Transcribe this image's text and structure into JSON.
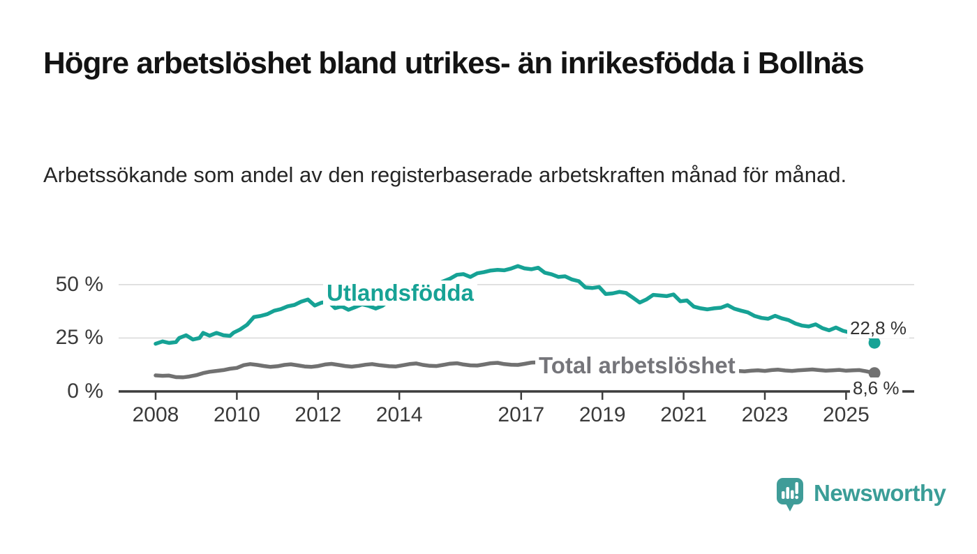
{
  "title": "Högre arbetslöshet bland utrikes- än inrikesfödda i Bollnäs",
  "subtitle": "Arbetssökande som andel av den registerbaserade arbetskraften månad för månad.",
  "brand": {
    "name": "Newsworthy",
    "logo_icon": "speech-bubble-bar-chart-icon",
    "color": "#3a9d97"
  },
  "colors": {
    "foreign_born_line": "#16a295",
    "total_line": "#717171",
    "axis": "#3d3d3d",
    "grid": "#dadada",
    "text": "#3a3a3a"
  },
  "chart_data": {
    "type": "line",
    "unit": "percent of registered labour force",
    "grid": "horizontal-only",
    "xlim": [
      2007.75,
      2025.95
    ],
    "ylim": [
      0,
      60
    ],
    "x_ticks": [
      2008,
      2010,
      2012,
      2014,
      2017,
      2019,
      2021,
      2023,
      2025
    ],
    "y_ticks": [
      {
        "label": "0 %",
        "value": 0
      },
      {
        "label": "25 %",
        "value": 25
      },
      {
        "label": "50 %",
        "value": 50
      }
    ],
    "series": [
      {
        "name": "Utlandsfödda",
        "color": "#16a295",
        "end_label": "22,8 %",
        "end_value": 22.8,
        "points": [
          [
            2008.0,
            22.3
          ],
          [
            2008.17,
            23.4
          ],
          [
            2008.33,
            22.7
          ],
          [
            2008.5,
            23.1
          ],
          [
            2008.58,
            25.0
          ],
          [
            2008.75,
            26.3
          ],
          [
            2008.92,
            24.3
          ],
          [
            2009.08,
            25.0
          ],
          [
            2009.17,
            27.4
          ],
          [
            2009.33,
            26.1
          ],
          [
            2009.5,
            27.4
          ],
          [
            2009.67,
            26.3
          ],
          [
            2009.83,
            26.0
          ],
          [
            2009.92,
            27.5
          ],
          [
            2010.08,
            29.0
          ],
          [
            2010.25,
            31.2
          ],
          [
            2010.42,
            34.8
          ],
          [
            2010.58,
            35.3
          ],
          [
            2010.75,
            36.2
          ],
          [
            2010.92,
            37.8
          ],
          [
            2011.08,
            38.5
          ],
          [
            2011.25,
            39.8
          ],
          [
            2011.42,
            40.5
          ],
          [
            2011.58,
            42.0
          ],
          [
            2011.75,
            43.0
          ],
          [
            2011.92,
            40.2
          ],
          [
            2012.08,
            41.5
          ],
          [
            2012.25,
            42.0
          ],
          [
            2012.42,
            39.0
          ],
          [
            2012.58,
            39.8
          ],
          [
            2012.75,
            38.2
          ],
          [
            2012.92,
            39.5
          ],
          [
            2013.08,
            40.8
          ],
          [
            2013.25,
            40.0
          ],
          [
            2013.42,
            38.8
          ],
          [
            2013.58,
            40.0
          ],
          [
            2013.75,
            42.5
          ],
          [
            2013.92,
            44.8
          ],
          [
            2014.08,
            46.3
          ],
          [
            2014.25,
            48.3
          ],
          [
            2014.42,
            48.8
          ],
          [
            2014.58,
            47.6
          ],
          [
            2014.75,
            48.8
          ],
          [
            2014.92,
            50.2
          ],
          [
            2015.08,
            51.5
          ],
          [
            2015.25,
            52.8
          ],
          [
            2015.42,
            54.6
          ],
          [
            2015.58,
            54.9
          ],
          [
            2015.75,
            53.6
          ],
          [
            2015.92,
            55.3
          ],
          [
            2016.08,
            55.8
          ],
          [
            2016.25,
            56.6
          ],
          [
            2016.42,
            56.9
          ],
          [
            2016.58,
            56.7
          ],
          [
            2016.75,
            57.5
          ],
          [
            2016.92,
            58.7
          ],
          [
            2017.08,
            57.6
          ],
          [
            2017.25,
            57.2
          ],
          [
            2017.42,
            57.9
          ],
          [
            2017.58,
            55.6
          ],
          [
            2017.75,
            54.8
          ],
          [
            2017.92,
            53.6
          ],
          [
            2018.08,
            53.9
          ],
          [
            2018.25,
            52.4
          ],
          [
            2018.42,
            51.6
          ],
          [
            2018.58,
            48.7
          ],
          [
            2018.75,
            48.4
          ],
          [
            2018.92,
            48.9
          ],
          [
            2019.08,
            45.6
          ],
          [
            2019.25,
            45.9
          ],
          [
            2019.42,
            46.6
          ],
          [
            2019.58,
            46.1
          ],
          [
            2019.75,
            43.9
          ],
          [
            2019.92,
            41.6
          ],
          [
            2020.08,
            43.0
          ],
          [
            2020.25,
            45.2
          ],
          [
            2020.42,
            44.9
          ],
          [
            2020.58,
            44.6
          ],
          [
            2020.75,
            45.4
          ],
          [
            2020.92,
            42.2
          ],
          [
            2021.08,
            42.6
          ],
          [
            2021.25,
            39.7
          ],
          [
            2021.42,
            38.9
          ],
          [
            2021.58,
            38.4
          ],
          [
            2021.75,
            38.9
          ],
          [
            2021.92,
            39.2
          ],
          [
            2022.08,
            40.4
          ],
          [
            2022.25,
            38.7
          ],
          [
            2022.42,
            37.8
          ],
          [
            2022.58,
            37.0
          ],
          [
            2022.75,
            35.3
          ],
          [
            2022.92,
            34.4
          ],
          [
            2023.08,
            34.0
          ],
          [
            2023.25,
            35.4
          ],
          [
            2023.42,
            34.2
          ],
          [
            2023.58,
            33.4
          ],
          [
            2023.75,
            31.8
          ],
          [
            2023.92,
            30.8
          ],
          [
            2024.08,
            30.4
          ],
          [
            2024.25,
            31.4
          ],
          [
            2024.42,
            29.6
          ],
          [
            2024.58,
            28.6
          ],
          [
            2024.75,
            29.9
          ],
          [
            2024.92,
            28.4
          ],
          [
            2025.08,
            27.6
          ],
          [
            2025.25,
            28.0
          ],
          [
            2025.4,
            29.0
          ],
          [
            2025.5,
            27.2
          ],
          [
            2025.58,
            25.5
          ],
          [
            2025.7,
            22.8
          ]
        ]
      },
      {
        "name": "Total arbetslöshet",
        "color": "#717171",
        "end_label": "8,6 %",
        "end_value": 8.6,
        "points": [
          [
            2008.0,
            7.5
          ],
          [
            2008.17,
            7.3
          ],
          [
            2008.33,
            7.4
          ],
          [
            2008.5,
            6.7
          ],
          [
            2008.67,
            6.6
          ],
          [
            2008.83,
            7.0
          ],
          [
            2009.0,
            7.6
          ],
          [
            2009.17,
            8.6
          ],
          [
            2009.33,
            9.2
          ],
          [
            2009.5,
            9.6
          ],
          [
            2009.67,
            10.0
          ],
          [
            2009.83,
            10.6
          ],
          [
            2010.0,
            11.0
          ],
          [
            2010.17,
            12.3
          ],
          [
            2010.33,
            12.8
          ],
          [
            2010.5,
            12.4
          ],
          [
            2010.67,
            11.9
          ],
          [
            2010.83,
            11.5
          ],
          [
            2011.0,
            11.8
          ],
          [
            2011.17,
            12.4
          ],
          [
            2011.33,
            12.7
          ],
          [
            2011.5,
            12.2
          ],
          [
            2011.67,
            11.7
          ],
          [
            2011.83,
            11.5
          ],
          [
            2012.0,
            11.9
          ],
          [
            2012.17,
            12.6
          ],
          [
            2012.33,
            12.9
          ],
          [
            2012.5,
            12.4
          ],
          [
            2012.67,
            11.9
          ],
          [
            2012.83,
            11.6
          ],
          [
            2013.0,
            12.0
          ],
          [
            2013.17,
            12.5
          ],
          [
            2013.33,
            12.8
          ],
          [
            2013.5,
            12.3
          ],
          [
            2013.75,
            11.8
          ],
          [
            2013.92,
            11.7
          ],
          [
            2014.08,
            12.2
          ],
          [
            2014.25,
            12.8
          ],
          [
            2014.42,
            13.1
          ],
          [
            2014.58,
            12.4
          ],
          [
            2014.75,
            12.0
          ],
          [
            2014.92,
            11.9
          ],
          [
            2015.08,
            12.4
          ],
          [
            2015.25,
            13.0
          ],
          [
            2015.42,
            13.2
          ],
          [
            2015.58,
            12.6
          ],
          [
            2015.75,
            12.2
          ],
          [
            2015.92,
            12.1
          ],
          [
            2016.08,
            12.6
          ],
          [
            2016.25,
            13.2
          ],
          [
            2016.42,
            13.4
          ],
          [
            2016.58,
            12.8
          ],
          [
            2016.75,
            12.5
          ],
          [
            2016.92,
            12.4
          ],
          [
            2017.08,
            12.9
          ],
          [
            2017.25,
            13.5
          ],
          [
            2017.42,
            13.6
          ],
          [
            2017.58,
            13.0
          ],
          [
            2017.75,
            12.6
          ],
          [
            2018.0,
            12.8
          ],
          [
            2018.33,
            12.4
          ],
          [
            2018.67,
            11.9
          ],
          [
            2019.0,
            11.6
          ],
          [
            2019.33,
            11.2
          ],
          [
            2019.67,
            10.9
          ],
          [
            2020.0,
            11.3
          ],
          [
            2020.33,
            11.6
          ],
          [
            2020.67,
            11.2
          ],
          [
            2021.0,
            10.8
          ],
          [
            2021.33,
            10.4
          ],
          [
            2021.67,
            10.1
          ],
          [
            2022.0,
            9.9
          ],
          [
            2022.17,
            9.8
          ],
          [
            2022.33,
            9.6
          ],
          [
            2022.5,
            9.4
          ],
          [
            2022.67,
            9.7
          ],
          [
            2022.83,
            9.9
          ],
          [
            2023.0,
            9.6
          ],
          [
            2023.17,
            10.0
          ],
          [
            2023.33,
            10.2
          ],
          [
            2023.5,
            9.8
          ],
          [
            2023.67,
            9.6
          ],
          [
            2023.83,
            9.9
          ],
          [
            2024.0,
            10.1
          ],
          [
            2024.17,
            10.3
          ],
          [
            2024.33,
            10.0
          ],
          [
            2024.5,
            9.7
          ],
          [
            2024.67,
            9.9
          ],
          [
            2024.83,
            10.1
          ],
          [
            2025.0,
            9.7
          ],
          [
            2025.17,
            9.9
          ],
          [
            2025.33,
            10.0
          ],
          [
            2025.5,
            9.4
          ],
          [
            2025.7,
            8.6
          ]
        ]
      }
    ]
  }
}
